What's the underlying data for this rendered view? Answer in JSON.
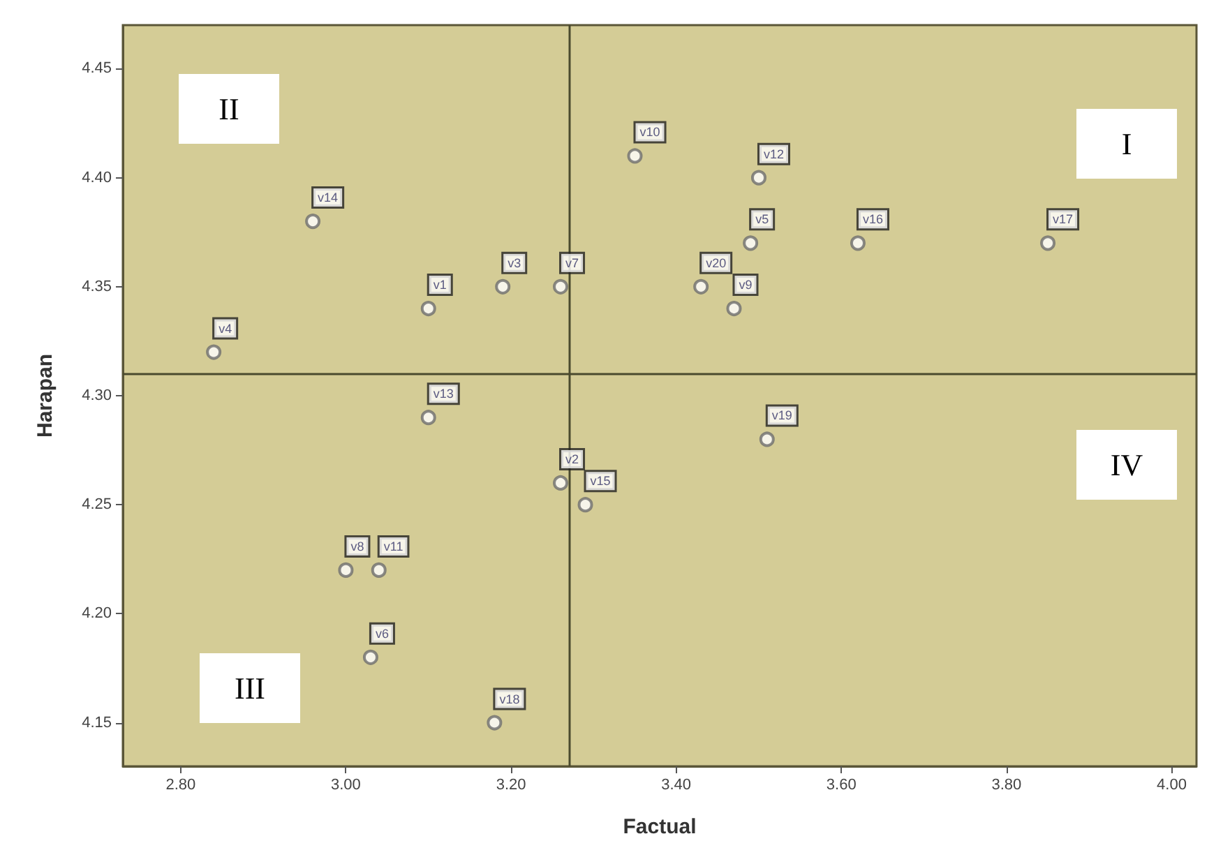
{
  "chart_data": {
    "type": "scatter",
    "xlabel": "Factual",
    "ylabel": "Harapan",
    "x": [
      3.1,
      3.26,
      3.19,
      2.84,
      3.49,
      3.03,
      3.26,
      3.0,
      3.47,
      3.35,
      3.04,
      3.5,
      3.1,
      2.96,
      3.29,
      3.62,
      3.85,
      3.18,
      3.51,
      3.43
    ],
    "series": [
      {
        "color": "#6e6e6e",
        "values": [
          4.34,
          4.26,
          4.35,
          4.32,
          4.37,
          4.18,
          4.35,
          4.22,
          4.34,
          4.41,
          4.22,
          4.4,
          4.29,
          4.38,
          4.25,
          4.37,
          4.37,
          4.15,
          4.28,
          4.35
        ],
        "value_labels": [
          "v1",
          "v2",
          "v3",
          "v4",
          "v5",
          "v6",
          "v7",
          "v8",
          "v9",
          "v10",
          "v11",
          "v12",
          "v13",
          "v14",
          "v15",
          "v16",
          "v17",
          "v18",
          "v19",
          "v20"
        ]
      }
    ],
    "xlim": [
      2.73,
      4.03
    ],
    "ylim": [
      4.13,
      4.47
    ],
    "xticks": [
      {
        "value": 2.8,
        "label": "2.80"
      },
      {
        "value": 3.0,
        "label": "3.00"
      },
      {
        "value": 3.2,
        "label": "3.20"
      },
      {
        "value": 3.4,
        "label": "3.40"
      },
      {
        "value": 3.6,
        "label": "3.60"
      },
      {
        "value": 3.8,
        "label": "3.80"
      },
      {
        "value": 4.0,
        "label": "4.00"
      }
    ],
    "yticks": [
      {
        "value": 4.15,
        "label": "4.15"
      },
      {
        "value": 4.2,
        "label": "4.20"
      },
      {
        "value": 4.25,
        "label": "4.25"
      },
      {
        "value": 4.3,
        "label": "4.30"
      },
      {
        "value": 4.35,
        "label": "4.35"
      },
      {
        "value": 4.4,
        "label": "4.40"
      },
      {
        "value": 4.45,
        "label": "4.45"
      }
    ],
    "ref_lines": [
      {
        "axis": "x",
        "value": 3.27,
        "color": "#4a4a2e"
      },
      {
        "axis": "y",
        "value": 4.31,
        "color": "#4a4a2e"
      }
    ],
    "annotations": [
      "I",
      "II",
      "III",
      "IV"
    ],
    "marker": "circle",
    "grid": false
  }
}
